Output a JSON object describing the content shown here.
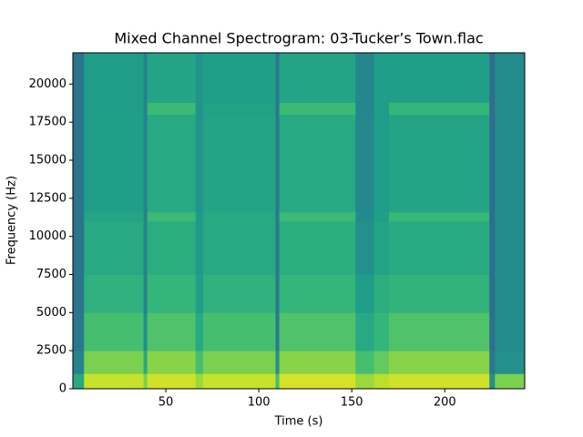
{
  "chart_data": {
    "type": "spectrogram",
    "title": "Mixed Channel Spectrogram: 03-Tucker’s Town.flac",
    "x_label": "Time (s)",
    "y_label": "Frequency (Hz)",
    "colormap": "viridis",
    "vlim": [
      0,
      1
    ],
    "x_edges": [
      0,
      6,
      38,
      40,
      66,
      70,
      109,
      111,
      152,
      162,
      170,
      224,
      227,
      243
    ],
    "y_edges": [
      0,
      1000,
      2500,
      5000,
      7500,
      11000,
      11600,
      18000,
      18800,
      22050
    ],
    "values": [
      [
        0.6,
        0.45,
        0.4,
        0.38,
        0.38,
        0.38,
        0.38,
        0.38,
        0.38
      ],
      [
        0.92,
        0.8,
        0.7,
        0.64,
        0.6,
        0.58,
        0.56,
        0.55,
        0.55
      ],
      [
        0.8,
        0.6,
        0.5,
        0.45,
        0.45,
        0.45,
        0.45,
        0.45,
        0.45
      ],
      [
        0.93,
        0.82,
        0.72,
        0.66,
        0.62,
        0.68,
        0.6,
        0.68,
        0.58
      ],
      [
        0.85,
        0.7,
        0.6,
        0.56,
        0.54,
        0.54,
        0.52,
        0.52,
        0.52
      ],
      [
        0.92,
        0.8,
        0.7,
        0.64,
        0.6,
        0.6,
        0.58,
        0.57,
        0.56
      ],
      [
        0.7,
        0.5,
        0.42,
        0.4,
        0.4,
        0.4,
        0.4,
        0.4,
        0.4
      ],
      [
        0.94,
        0.82,
        0.72,
        0.66,
        0.62,
        0.68,
        0.6,
        0.68,
        0.58
      ],
      [
        0.85,
        0.7,
        0.6,
        0.55,
        0.5,
        0.48,
        0.47,
        0.46,
        0.46
      ],
      [
        0.9,
        0.76,
        0.66,
        0.62,
        0.58,
        0.56,
        0.55,
        0.55,
        0.55
      ],
      [
        0.93,
        0.82,
        0.72,
        0.65,
        0.61,
        0.67,
        0.58,
        0.66,
        0.56
      ],
      [
        0.5,
        0.4,
        0.37,
        0.36,
        0.36,
        0.36,
        0.36,
        0.36,
        0.36
      ],
      [
        0.8,
        0.5,
        0.48,
        0.48,
        0.48,
        0.48,
        0.48,
        0.48,
        0.48
      ]
    ],
    "xlim": [
      0,
      243
    ],
    "ylim": [
      0,
      22050
    ],
    "xticks": [
      50,
      100,
      150,
      200
    ],
    "yticks": [
      0,
      2500,
      5000,
      7500,
      10000,
      12500,
      15000,
      17500,
      20000
    ]
  }
}
